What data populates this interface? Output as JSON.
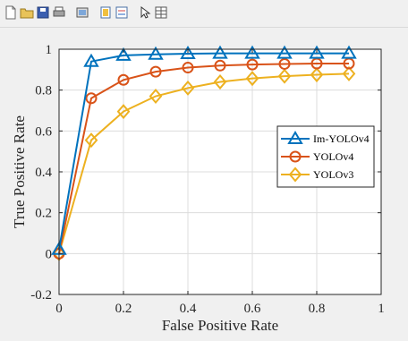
{
  "toolbar": {
    "icons": [
      "new-file-icon",
      "open-folder-icon",
      "save-icon",
      "print-icon",
      "export-icon",
      "link-plot-icon",
      "insert-legend-icon",
      "pointer-icon",
      "property-editor-icon"
    ]
  },
  "chart_data": {
    "type": "line",
    "title": "",
    "xlabel": "False Positive Rate",
    "ylabel": "True Positive Rate",
    "xlim": [
      0,
      1
    ],
    "ylim": [
      -0.2,
      1
    ],
    "xticks": [
      "0",
      "0.2",
      "0.4",
      "0.6",
      "0.8",
      "1"
    ],
    "yticks": [
      "-0.2",
      "0",
      "0.2",
      "0.4",
      "0.6",
      "0.8",
      "1"
    ],
    "grid": true,
    "legend_position": "right",
    "x": [
      0,
      0.1,
      0.2,
      0.3,
      0.4,
      0.5,
      0.6,
      0.7,
      0.8,
      0.9
    ],
    "series": [
      {
        "name": "Im-YOLOv4",
        "color": "#0072BD",
        "marker": "triangle",
        "values": [
          0.02,
          0.94,
          0.97,
          0.975,
          0.978,
          0.98,
          0.98,
          0.98,
          0.98,
          0.98
        ]
      },
      {
        "name": "YOLOv4",
        "color": "#D95319",
        "marker": "circle",
        "values": [
          0.0,
          0.76,
          0.85,
          0.89,
          0.91,
          0.92,
          0.925,
          0.928,
          0.93,
          0.93
        ]
      },
      {
        "name": "YOLOv3",
        "color": "#EDB120",
        "marker": "diamond",
        "values": [
          0.0,
          0.555,
          0.695,
          0.77,
          0.81,
          0.84,
          0.857,
          0.868,
          0.875,
          0.88
        ]
      }
    ]
  }
}
